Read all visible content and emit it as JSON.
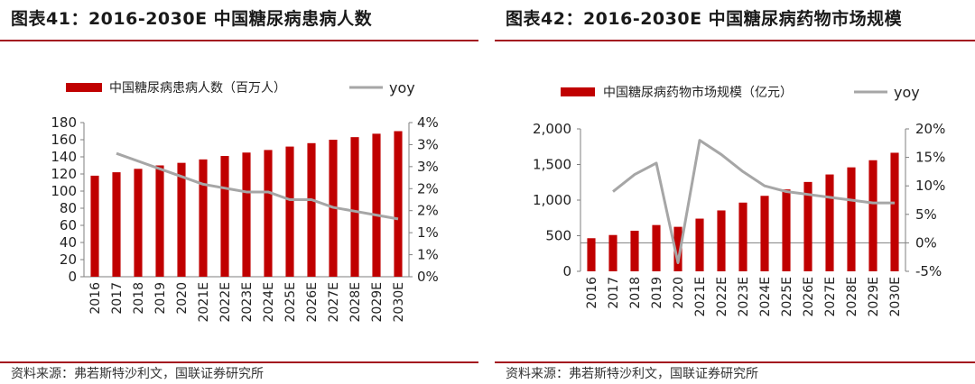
{
  "panels": [
    {
      "title": "图表41：2016-2030E 中国糖尿病患病人数",
      "source": "资料来源：弗若斯特沙利文，国联证券研究所",
      "colors": {
        "bar": "#c00000",
        "line": "#a6a6a6"
      },
      "chart_data": {
        "type": "bar",
        "categories": [
          "2016",
          "2017",
          "2018",
          "2019",
          "2020",
          "2021E",
          "2022E",
          "2023E",
          "2024E",
          "2025E",
          "2026E",
          "2027E",
          "2028E",
          "2029E",
          "2030E"
        ],
        "series": [
          {
            "name": "中国糖尿病患病人数（百万人）",
            "type": "bar",
            "axis": "left",
            "values": [
              118,
              122,
              126,
              130,
              133,
              137,
              141,
              145,
              148,
              152,
              156,
              160,
              163,
              167,
              170
            ]
          },
          {
            "name": "yoy",
            "type": "line",
            "axis": "right",
            "values": [
              null,
              3.2,
              3.0,
              2.8,
              2.6,
              2.4,
              2.3,
              2.2,
              2.2,
              2.0,
              2.0,
              1.8,
              1.7,
              1.6,
              1.5
            ]
          }
        ],
        "left_axis": {
          "ylim": [
            0,
            180
          ],
          "ticks": [
            "0",
            "20",
            "40",
            "60",
            "80",
            "100",
            "120",
            "140",
            "160",
            "180"
          ]
        },
        "right_axis": {
          "ylim": [
            0,
            4
          ],
          "ticks": [
            "0%",
            "1%",
            "1%",
            "2%",
            "2%",
            "3%",
            "3%",
            "4%"
          ]
        },
        "legend_position": "top",
        "grid": false
      }
    },
    {
      "title": "图表42：2016-2030E 中国糖尿病药物市场规模",
      "source": "资料来源：弗若斯特沙利文，国联证券研究所",
      "colors": {
        "bar": "#c00000",
        "line": "#a6a6a6"
      },
      "chart_data": {
        "type": "bar",
        "categories": [
          "2016",
          "2017",
          "2018",
          "2019",
          "2020",
          "2021E",
          "2022E",
          "2023E",
          "2024E",
          "2025E",
          "2026E",
          "2027E",
          "2028E",
          "2029E",
          "2030E"
        ],
        "series": [
          {
            "name": "中国糖尿病药物市场规模（亿元）",
            "type": "bar",
            "axis": "left",
            "values": [
              465,
              510,
              570,
              650,
              625,
              740,
              855,
              965,
              1060,
              1150,
              1255,
              1360,
              1460,
              1560,
              1665
            ]
          },
          {
            "name": "yoy",
            "type": "line",
            "axis": "right",
            "values": [
              null,
              9.0,
              12.0,
              14.0,
              -3.5,
              18.0,
              15.5,
              12.5,
              10.0,
              9.0,
              8.5,
              8.0,
              7.5,
              7.0,
              7.0
            ]
          }
        ],
        "left_axis": {
          "ylim": [
            0,
            2000
          ],
          "ticks": [
            "0",
            "500",
            "1,000",
            "1,500",
            "2,000"
          ]
        },
        "right_axis": {
          "ylim": [
            -5,
            20
          ],
          "ticks": [
            "-5%",
            "0%",
            "5%",
            "10%",
            "15%",
            "20%"
          ]
        },
        "legend_position": "top",
        "grid": false
      }
    }
  ]
}
